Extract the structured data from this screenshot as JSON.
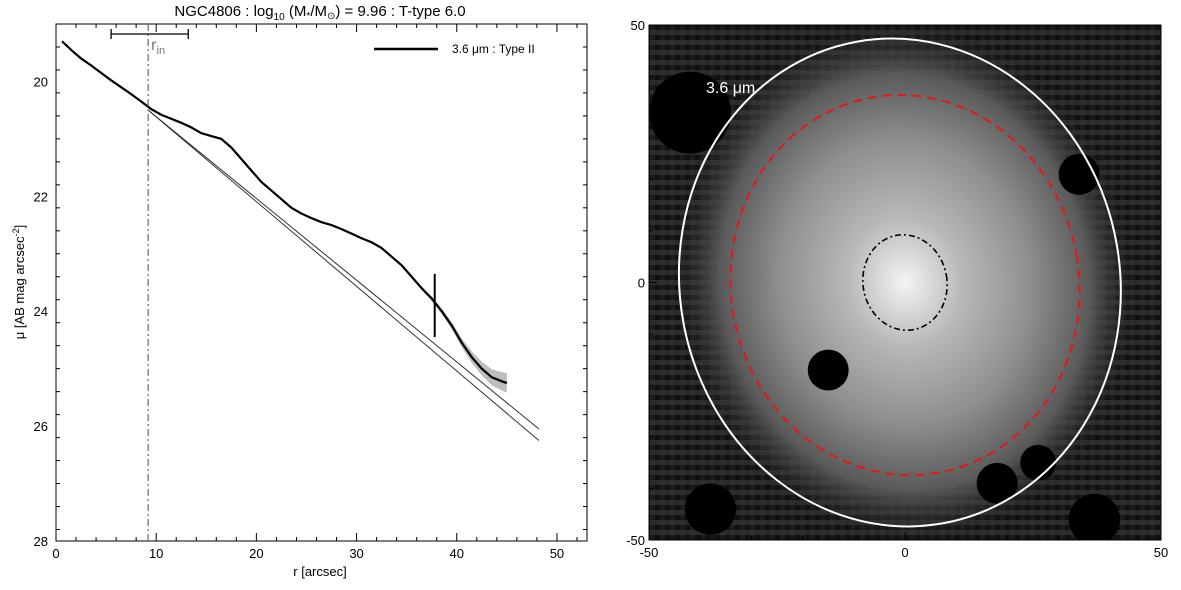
{
  "chart_data": [
    {
      "type": "line",
      "title_main": "NGC4806 : log",
      "title_sub": "10",
      "title_tail1": " (M",
      "title_star": "*",
      "title_slash": "/M",
      "title_sun": "⊙",
      "title_tail2": ") = 9.96 : T-type 6.0",
      "xlabel": "r [arcsec]",
      "ylabel": "μ [AB mag arcsec",
      "ylabel_sup": "-2",
      "ylabel_close": "]",
      "xlim": [
        0,
        53
      ],
      "ylim": [
        28,
        19
      ],
      "x_ticks": [
        0,
        10,
        20,
        30,
        40,
        50
      ],
      "y_ticks": [
        20,
        22,
        24,
        26,
        28
      ],
      "legend": {
        "label": "3.6 μm : Type II",
        "position": "top-right"
      },
      "rin_label": "r",
      "rin_sub": "in",
      "rin_x": 9.2,
      "rin_errbar": [
        5.5,
        13.2
      ],
      "break_marker": {
        "x": 37.8,
        "y": 23.9,
        "half_height": 0.55
      },
      "profile": {
        "name": "3.6 μm : Type II",
        "x": [
          0.6,
          1.5,
          2.5,
          3.5,
          4.5,
          5.5,
          6.5,
          7.5,
          8.5,
          9.5,
          10.5,
          11.5,
          12.5,
          13.5,
          14.5,
          15.5,
          16.5,
          17.5,
          18.5,
          19.5,
          20.5,
          21.5,
          22.5,
          23.5,
          24.5,
          25.5,
          26.5,
          27.5,
          28.5,
          29.5,
          30.5,
          31.5,
          32.5,
          33.5,
          34.5,
          35.5,
          36.5,
          37.5,
          38.5,
          39.5,
          40.5,
          41.5,
          42.5,
          43.5,
          44.5,
          45.0
        ],
        "y": [
          19.3,
          19.45,
          19.6,
          19.72,
          19.85,
          19.98,
          20.1,
          20.22,
          20.35,
          20.48,
          20.58,
          20.65,
          20.72,
          20.8,
          20.9,
          20.95,
          21.0,
          21.15,
          21.35,
          21.55,
          21.75,
          21.9,
          22.05,
          22.2,
          22.3,
          22.38,
          22.45,
          22.5,
          22.57,
          22.65,
          22.73,
          22.8,
          22.9,
          23.05,
          23.2,
          23.4,
          23.6,
          23.78,
          24.0,
          24.25,
          24.55,
          24.8,
          25.0,
          25.15,
          25.22,
          25.25
        ],
        "uncertainty": [
          0,
          0,
          0,
          0,
          0,
          0,
          0,
          0,
          0,
          0,
          0,
          0,
          0,
          0,
          0,
          0,
          0,
          0,
          0,
          0,
          0,
          0,
          0,
          0,
          0,
          0,
          0,
          0,
          0,
          0,
          0,
          0,
          0,
          0,
          0,
          0.02,
          0.03,
          0.04,
          0.05,
          0.06,
          0.08,
          0.1,
          0.12,
          0.14,
          0.16,
          0.17
        ]
      },
      "fits": [
        {
          "x": [
            9.2,
            48.2
          ],
          "y": [
            20.5,
            26.25
          ]
        },
        {
          "x": [
            9.2,
            48.2
          ],
          "y": [
            20.5,
            26.05
          ]
        }
      ]
    },
    {
      "type": "image",
      "xlim": [
        -50,
        50
      ],
      "ylim": [
        -50,
        50
      ],
      "x_ticks": [
        -50,
        0,
        50
      ],
      "y_ticks": [
        50,
        0,
        -50
      ],
      "band_label": "3.6 μm",
      "colors": {
        "outer": "#ffffff",
        "break": "#e01818",
        "inner": "#000000"
      },
      "ellipses": [
        {
          "name": "outer",
          "cx": -1.0,
          "cy": 0.0,
          "rx": 43.0,
          "ry": 47.5,
          "angle": -10,
          "style": "solid"
        },
        {
          "name": "break",
          "cx": 0.0,
          "cy": -0.5,
          "rx": 34.0,
          "ry": 37.0,
          "angle": -10,
          "style": "dashed"
        },
        {
          "name": "rin",
          "cx": 0.0,
          "cy": 0.0,
          "rx": 8.2,
          "ry": 9.3,
          "angle": -10,
          "style": "dashdot"
        }
      ],
      "masks": [
        {
          "x": -42,
          "y": 33,
          "r": 8
        },
        {
          "x": -15,
          "y": -17,
          "r": 4
        },
        {
          "x": 34,
          "y": 21,
          "r": 4
        },
        {
          "x": 26,
          "y": -35,
          "r": 3.5
        },
        {
          "x": 18,
          "y": -39,
          "r": 4
        },
        {
          "x": -38,
          "y": -44,
          "r": 5
        },
        {
          "x": 37,
          "y": -46,
          "r": 5
        }
      ]
    }
  ]
}
